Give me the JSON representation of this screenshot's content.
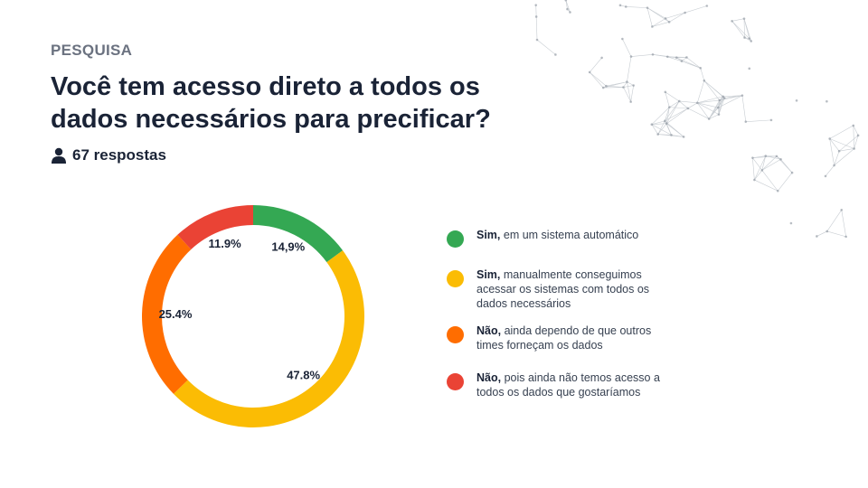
{
  "header": {
    "kicker": "PESQUISA",
    "title": "Você tem acesso direto a todos os dados necessários para precificar?",
    "responses": "67 respostas",
    "responses_icon": "person-icon"
  },
  "chart_data": {
    "type": "pie",
    "variant": "donut",
    "labels": [
      "Sim, em um sistema automático",
      "Sim, manualmente conseguimos acessar os sistemas com todos os dados necessários",
      "Não, ainda dependo de que outros times forneçam os dados",
      "Não, pois ainda não temos acesso a todos os dados que gostaríamos"
    ],
    "values": [
      14.9,
      47.8,
      25.4,
      11.9
    ],
    "value_labels": [
      "14,9%",
      "47.8%",
      "25.4%",
      "11.9%"
    ],
    "colors": [
      "#34a853",
      "#fbbc04",
      "#ff6d00",
      "#ea4335"
    ],
    "start_angle_deg": 0,
    "direction": "clockwise",
    "legend_position": "right"
  },
  "legend": {
    "items": [
      {
        "bold": "Sim,",
        "rest": " em um sistema automático",
        "color": "#34a853"
      },
      {
        "bold": "Sim,",
        "rest": " manualmente conseguimos acessar os sistemas com todos os dados necessários",
        "color": "#fbbc04"
      },
      {
        "bold": "Não,",
        "rest": " ainda dependo de que outros times forneçam os dados",
        "color": "#ff6d00"
      },
      {
        "bold": "Não,",
        "rest": " pois ainda não temos acesso a todos os dados que gostaríamos",
        "color": "#ea4335"
      }
    ]
  }
}
